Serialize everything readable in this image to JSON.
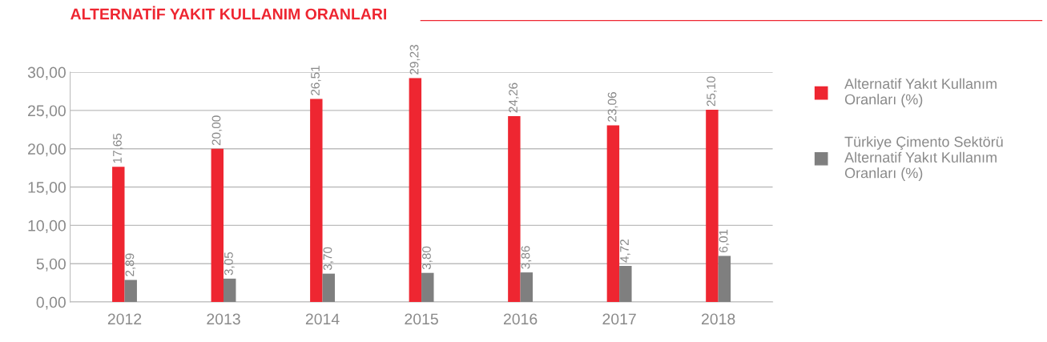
{
  "chart_data": {
    "type": "bar",
    "title": "ALTERNATİF YAKIT KULLANIM ORANLARI",
    "categories": [
      "2012",
      "2013",
      "2014",
      "2015",
      "2016",
      "2017",
      "2018"
    ],
    "series": [
      {
        "name": "Alternatif Yakıt Kullanım Oranları (%)",
        "color": "#ee2631",
        "values": [
          17.65,
          20.0,
          26.51,
          29.23,
          24.26,
          23.06,
          25.1
        ],
        "value_labels": [
          "17,65",
          "20,00",
          "26,51",
          "29,23",
          "24,26",
          "23,06",
          "25,10"
        ]
      },
      {
        "name": "Türkiye Çimento Sektörü Alternatif Yakıt Kullanım Oranları (%)",
        "color": "#7f7f7f",
        "values": [
          2.89,
          3.05,
          3.7,
          3.8,
          3.86,
          4.72,
          6.01
        ],
        "value_labels": [
          "2,89",
          "3,05",
          "3,70",
          "3,80",
          "3,86",
          "4,72",
          "6,01"
        ]
      }
    ],
    "ylim": [
      0,
      30
    ],
    "yticks": [
      {
        "value": 0,
        "label": "0,00"
      },
      {
        "value": 5,
        "label": "5,00"
      },
      {
        "value": 10,
        "label": "10,00"
      },
      {
        "value": 15,
        "label": "15,00"
      },
      {
        "value": 20,
        "label": "20,00"
      },
      {
        "value": 25,
        "label": "25,00"
      },
      {
        "value": 30,
        "label": "30,00"
      }
    ],
    "grid": "y",
    "legend": "right"
  }
}
